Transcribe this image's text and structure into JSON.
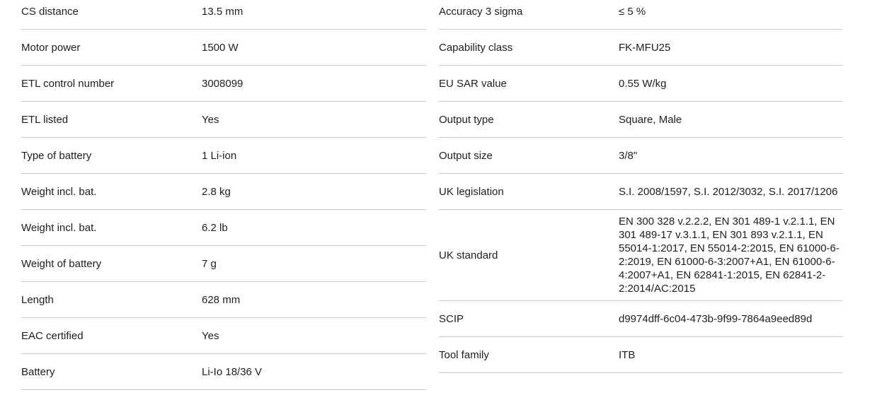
{
  "spec_table": {
    "colors": {
      "background": "#ffffff",
      "text": "#1e1e1e",
      "divider": "#c8c8c8"
    },
    "left_column": [
      {
        "label": "CS distance",
        "value": "13.5 mm"
      },
      {
        "label": "Motor power",
        "value": "1500 W"
      },
      {
        "label": "ETL control number",
        "value": "3008099"
      },
      {
        "label": "ETL listed",
        "value": "Yes"
      },
      {
        "label": "Type of battery",
        "value": "1 Li-ion"
      },
      {
        "label": "Weight incl. bat.",
        "value": "2.8 kg"
      },
      {
        "label": "Weight incl. bat.",
        "value": "6.2 lb"
      },
      {
        "label": "Weight of battery",
        "value": "7 g"
      },
      {
        "label": "Length",
        "value": "628 mm"
      },
      {
        "label": "EAC certified",
        "value": "Yes"
      },
      {
        "label": "Battery",
        "value": "Li-Io 18/36 V"
      }
    ],
    "right_column": [
      {
        "label": "Accuracy 3 sigma",
        "value": "≤ 5 %"
      },
      {
        "label": "Capability class",
        "value": "FK-MFU25"
      },
      {
        "label": "EU SAR value",
        "value": "0.55 W/kg"
      },
      {
        "label": "Output type",
        "value": "Square, Male"
      },
      {
        "label": "Output size",
        "value": "3/8\""
      },
      {
        "label": "UK legislation",
        "value": "S.I. 2008/1597, S.I. 2012/3032, S.I. 2017/1206"
      },
      {
        "label": "UK standard",
        "value": "EN 300 328 v.2.2.2, EN 301 489-1 v.2.1.1, EN 301 489-17 v.3.1.1, EN 301 893 v.2.1.1, EN 55014-1:2017, EN 55014-2:2015, EN 61000-6-2:2019, EN 61000-6-3:2007+A1, EN 61000-6-4:2007+A1, EN 62841-1:2015, EN 62841-2-2:2014/AC:2015"
      },
      {
        "label": "SCIP",
        "value": "d9974dff-6c04-473b-9f99-7864a9eed89d"
      },
      {
        "label": "Tool family",
        "value": "ITB"
      }
    ]
  }
}
